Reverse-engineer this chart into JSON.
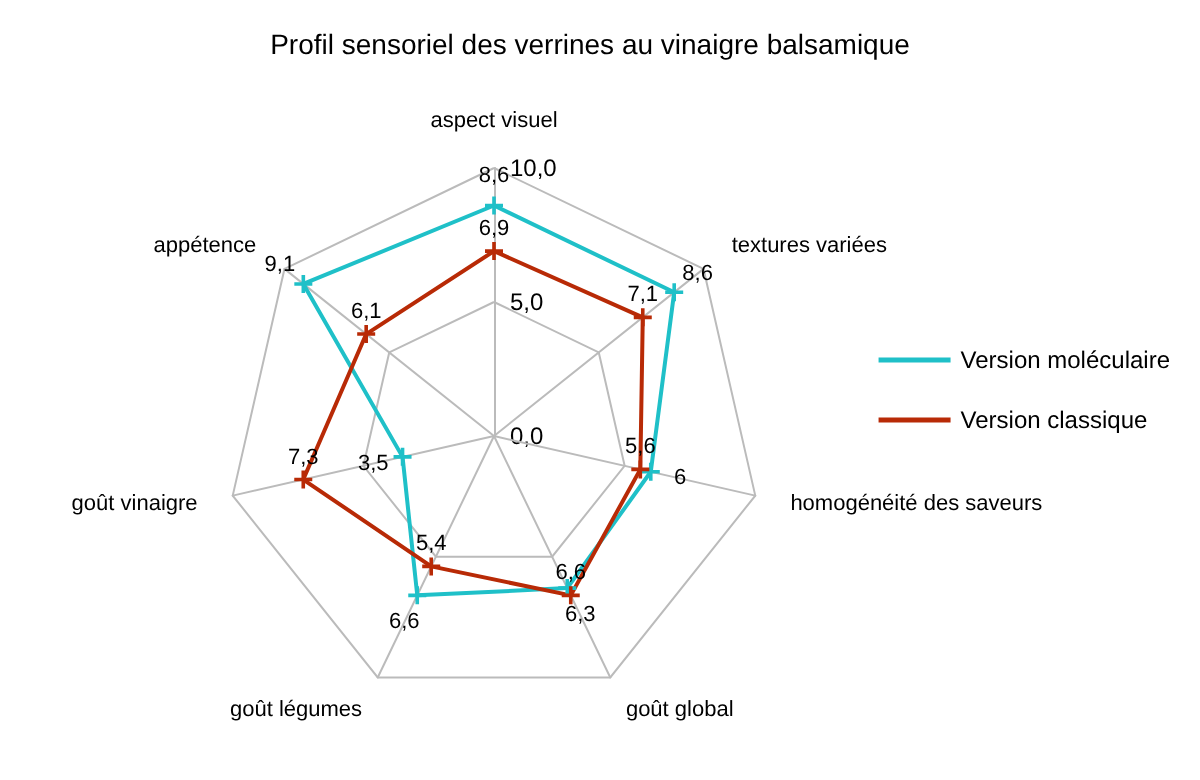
{
  "chart_data": {
    "type": "radar",
    "title": "Profil sensoriel des verrines au vinaigre balsamique",
    "categories": [
      "aspect visuel",
      "textures variées",
      "homogénéité des saveurs",
      "goût global",
      "goût légumes",
      "goût vinaigre",
      "appétence"
    ],
    "series": [
      {
        "name": "Version moléculaire",
        "color": "#1fc0c8",
        "values": [
          8.6,
          8.6,
          6,
          6.3,
          6.6,
          3.5,
          9.1
        ],
        "value_labels": [
          "8,6",
          "8,6",
          "6",
          "6,3",
          "6,6",
          "3,5",
          "9,1"
        ]
      },
      {
        "name": "Version classique",
        "color": "#b82a06",
        "values": [
          6.9,
          7.1,
          5.6,
          6.6,
          5.4,
          7.3,
          6.1
        ],
        "value_labels": [
          "6,9",
          "7,1",
          "5,6",
          "6,6",
          "5,4",
          "7,3",
          "6,1"
        ]
      }
    ],
    "ylim": [
      0,
      10
    ],
    "yticks": [
      {
        "value": 0,
        "label": "0,0"
      },
      {
        "value": 5,
        "label": "5,0"
      },
      {
        "value": 10,
        "label": "10,0"
      }
    ],
    "grid": true,
    "legend": "right",
    "marker": "cross",
    "line_style": "solid"
  }
}
